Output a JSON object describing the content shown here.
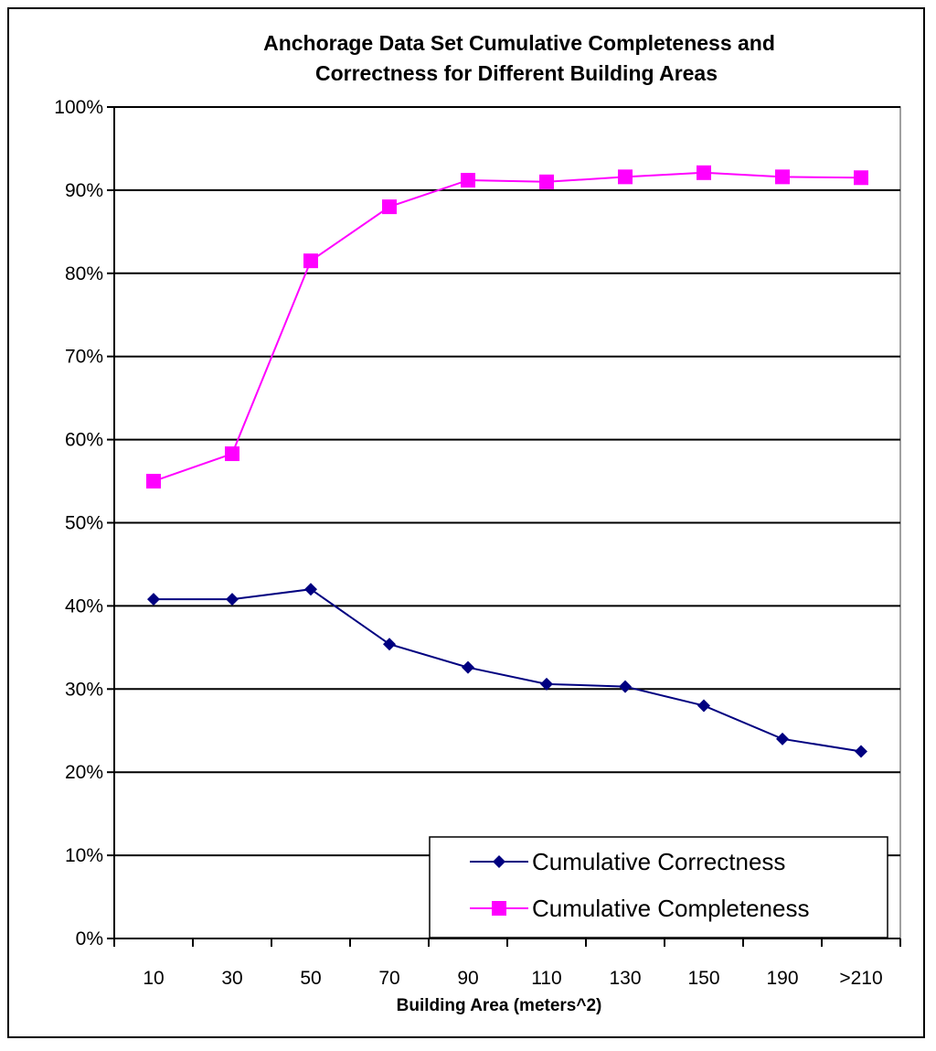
{
  "chart_data": {
    "type": "line",
    "title_lines": [
      "Anchorage Data Set  Cumulative Completeness and",
      "Correctness for Different Building  Areas"
    ],
    "xlabel": "Building Area (meters^2)",
    "ylabel": "",
    "categories": [
      "10",
      "30",
      "50",
      "70",
      "90",
      "110",
      "130",
      "150",
      "190",
      ">210"
    ],
    "ylim": [
      0,
      100
    ],
    "ytick_values": [
      0,
      10,
      20,
      30,
      40,
      50,
      60,
      70,
      80,
      90,
      100
    ],
    "ytick_labels": [
      "0%",
      "10%",
      "20%",
      "30%",
      "40%",
      "50%",
      "60%",
      "70%",
      "80%",
      "90%",
      "100%"
    ],
    "grid": "horizontal",
    "legend_position": "bottom-right",
    "series": [
      {
        "name": "Cumulative Correctness",
        "color": "#000080",
        "marker": "diamond",
        "values": [
          40.8,
          40.8,
          42.0,
          35.4,
          32.6,
          30.6,
          30.3,
          28.0,
          24.0,
          22.5
        ]
      },
      {
        "name": "Cumulative Completeness",
        "color": "#ff00ff",
        "marker": "square",
        "values": [
          55.0,
          58.3,
          81.5,
          88.0,
          91.2,
          91.0,
          91.6,
          92.1,
          91.6,
          91.5
        ]
      }
    ]
  }
}
